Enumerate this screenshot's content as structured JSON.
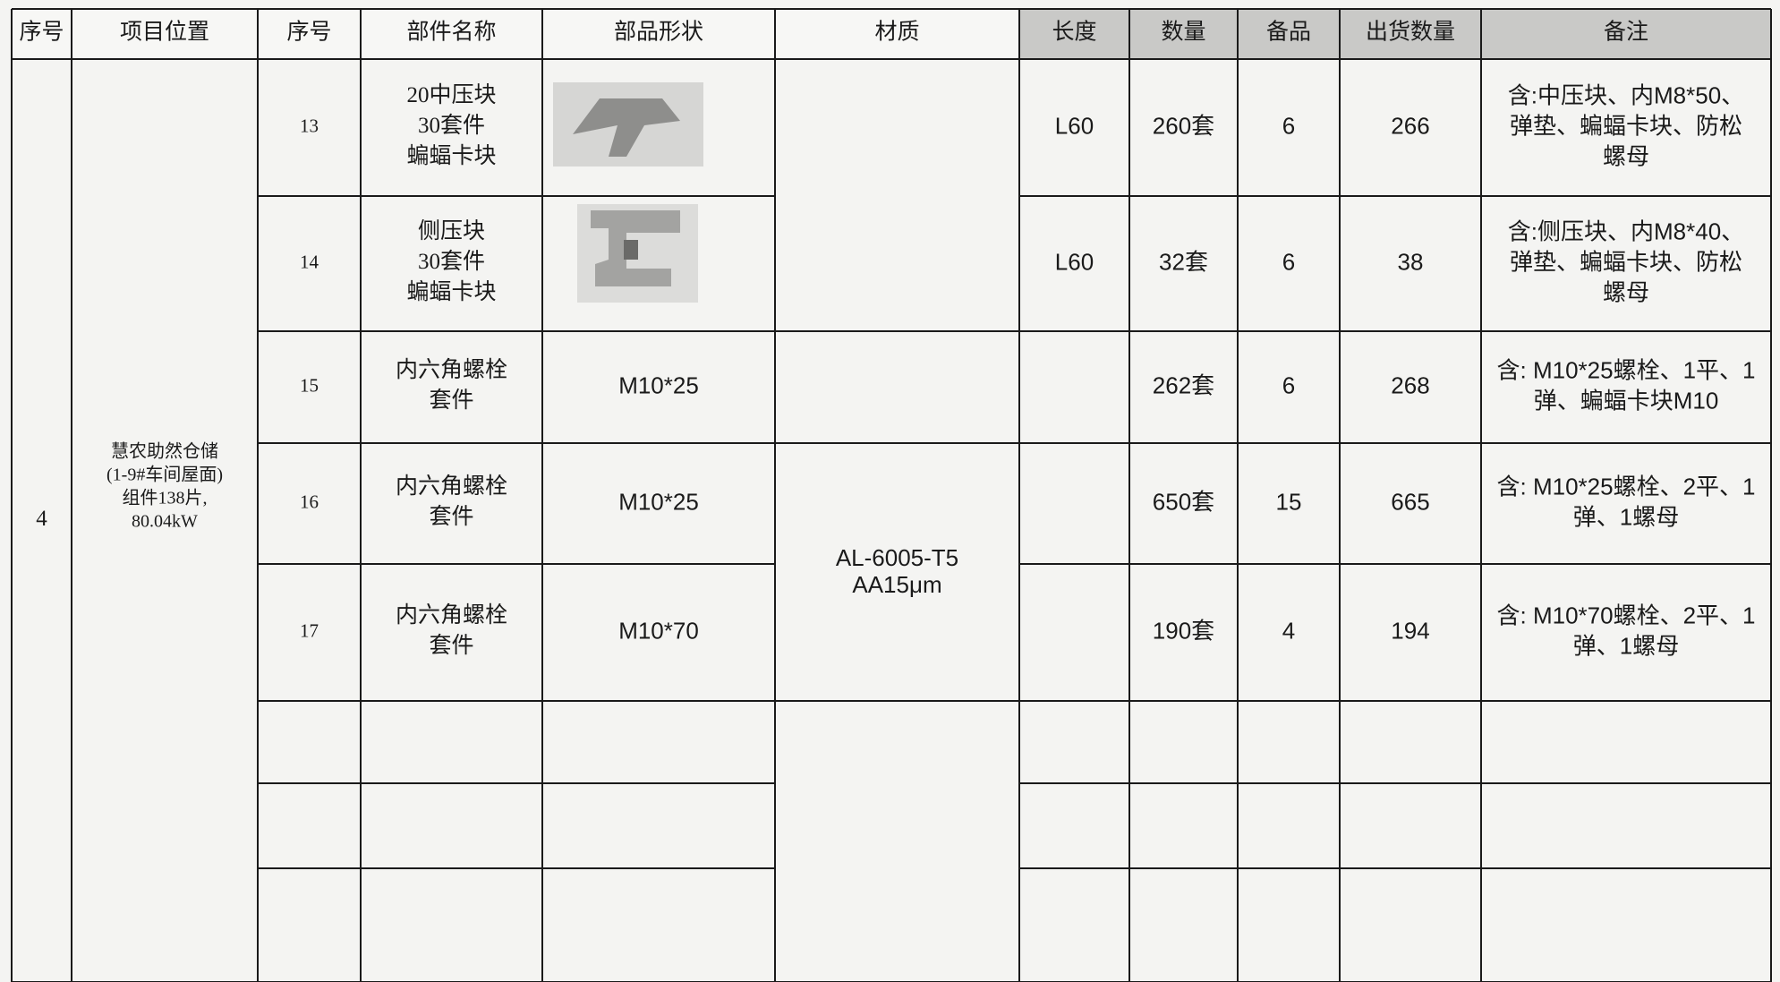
{
  "header": [
    "序号",
    "项目位置",
    "序号",
    "部件名称",
    "部品形状",
    "材质",
    "长度",
    "数量",
    "备品",
    "出货数量",
    "备注"
  ],
  "group": {
    "no": "4",
    "location": [
      "慧农助然仓储",
      "(1-9#车间屋面)",
      "组件138片,",
      "80.04kW"
    ]
  },
  "material": [
    "AL-6005-T5",
    "AA15μm"
  ],
  "rows": [
    {
      "no": "13",
      "name": [
        "20中压块",
        "30套件",
        "蝙蝠卡块"
      ],
      "length": "L60",
      "qty": "260套",
      "spare": "6",
      "ship": "266",
      "note": [
        "含:中压块、内M8*50、",
        "弹垫、蝙蝠卡块、防松",
        "螺母"
      ]
    },
    {
      "no": "14",
      "name": [
        "侧压块",
        "30套件",
        "蝙蝠卡块"
      ],
      "length": "L60",
      "qty": "32套",
      "spare": "6",
      "ship": "38",
      "note": [
        "含:侧压块、内M8*40、",
        "弹垫、蝙蝠卡块、防松",
        "螺母"
      ]
    },
    {
      "no": "15",
      "name": [
        "内六角螺栓",
        "套件"
      ],
      "shape": "M10*25",
      "qty": "262套",
      "spare": "6",
      "ship": "268",
      "note": [
        "含: M10*25螺栓、1平、1",
        "弹、蝙蝠卡块M10"
      ]
    },
    {
      "no": "16",
      "name": [
        "内六角螺栓",
        "套件"
      ],
      "shape": "M10*25",
      "qty": "650套",
      "spare": "15",
      "ship": "665",
      "note": [
        "含: M10*25螺栓、2平、1",
        "弹、1螺母"
      ]
    },
    {
      "no": "17",
      "name": [
        "内六角螺栓",
        "套件"
      ],
      "shape": "M10*70",
      "qty": "190套",
      "spare": "4",
      "ship": "194",
      "note": [
        "含: M10*70螺栓、2平、1",
        "弹、1螺母"
      ]
    }
  ]
}
